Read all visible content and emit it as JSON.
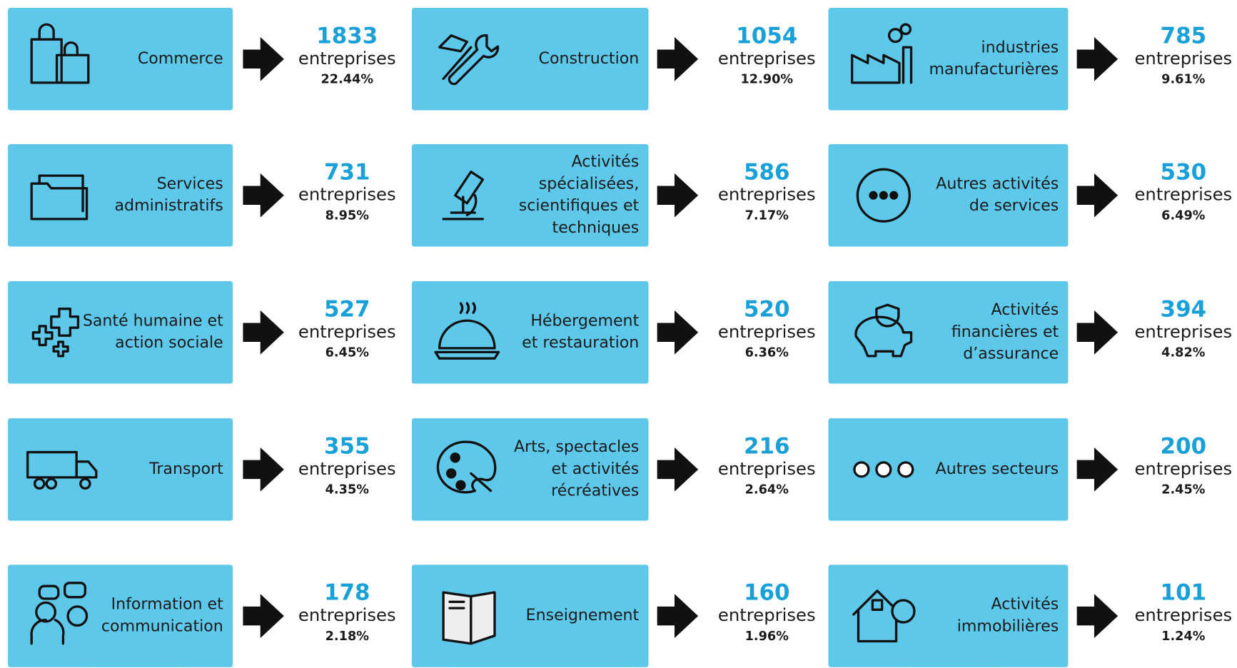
{
  "sectors": [
    {
      "label": [
        "Commerce"
      ],
      "count": "1833",
      "unit": "entreprises",
      "share": "22.44%"
    },
    {
      "label": [
        "Construction"
      ],
      "count": "1054",
      "unit": "entreprises",
      "share": "12.90%"
    },
    {
      "label": [
        "industries",
        "manufacturières"
      ],
      "count": "785",
      "unit": "entreprises",
      "share": "9.61%"
    },
    {
      "label": [
        "Services",
        "administratifs"
      ],
      "count": "731",
      "unit": "entreprises",
      "share": "8.95%"
    },
    {
      "label": [
        "Activités",
        "spécialisées,",
        "scientifiques et",
        "techniques"
      ],
      "count": "586",
      "unit": "entreprises",
      "share": "7.17%"
    },
    {
      "label": [
        "Autres activités",
        "de services"
      ],
      "count": "530",
      "unit": "entreprises",
      "share": "6.49%"
    },
    {
      "label": [
        "Santé humaine et",
        "action sociale"
      ],
      "count": "527",
      "unit": "entreprises",
      "share": "6.45%"
    },
    {
      "label": [
        "Hébergement",
        "et restauration"
      ],
      "count": "520",
      "unit": "entreprises",
      "share": "6.36%"
    },
    {
      "label": [
        "Activités",
        "financières et",
        "d’assurance"
      ],
      "count": "394",
      "unit": "entreprises",
      "share": "4.82%"
    },
    {
      "label": [
        "Transport"
      ],
      "count": "355",
      "unit": "entreprises",
      "share": "4.35%"
    },
    {
      "label": [
        "Arts, spectacles",
        "et activités",
        "récréatives"
      ],
      "count": "216",
      "unit": "entreprises",
      "share": "2.64%"
    },
    {
      "label": [
        "Autres secteurs"
      ],
      "count": "200",
      "unit": "entreprises",
      "share": "2.45%"
    },
    {
      "label": [
        "Information et",
        "communication"
      ],
      "count": "178",
      "unit": "entreprises",
      "share": "2.18%"
    },
    {
      "label": [
        "Enseignement"
      ],
      "count": "160",
      "unit": "entreprises",
      "share": "1.96%"
    },
    {
      "label": [
        "Activités",
        "immobilières"
      ],
      "count": "101",
      "unit": "entreprises",
      "share": "1.24%"
    }
  ]
}
